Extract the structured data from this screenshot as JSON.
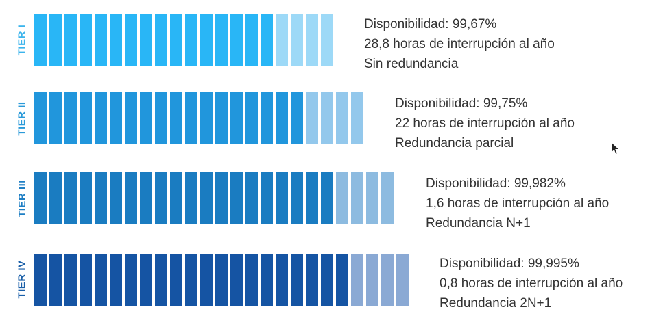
{
  "tiers": [
    {
      "label": "TIER I",
      "availability": "Disponibilidad: 99,67%",
      "downtime": "28,8 horas de interrupción al año",
      "redundancy": "Sin redundancia",
      "total_segments": 20,
      "filled_segments": 16,
      "colors": {
        "label": "#3bb4ec",
        "filled": "#29b6f6",
        "light": "#9dd9f7"
      }
    },
    {
      "label": "TIER II",
      "availability": "Disponibilidad: 99,75%",
      "downtime": "22 horas de interrupción al año",
      "redundancy": "Redundancia parcial",
      "total_segments": 22,
      "filled_segments": 18,
      "colors": {
        "label": "#2a9ad9",
        "filled": "#2196dc",
        "light": "#93c8ec"
      }
    },
    {
      "label": "TIER III",
      "availability": "Disponibilidad: 99,982%",
      "downtime": "1,6 horas de interrupción al año",
      "redundancy": "Redundancia N+1",
      "total_segments": 24,
      "filled_segments": 20,
      "colors": {
        "label": "#1f7fc4",
        "filled": "#1a7cc1",
        "light": "#8dbbe0"
      }
    },
    {
      "label": "TIER IV",
      "availability": "Disponibilidad: 99,995%",
      "downtime": "0,8 horas de interrupción al año",
      "redundancy": "Redundancia 2N+1",
      "total_segments": 25,
      "filled_segments": 21,
      "colors": {
        "label": "#1a5fa8",
        "filled": "#1554a3",
        "light": "#8aa9d4"
      }
    }
  ],
  "cursor": {
    "icon": "mouse-pointer-icon"
  }
}
